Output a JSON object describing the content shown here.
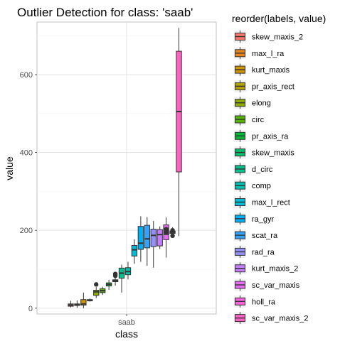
{
  "chart_data": {
    "type": "box",
    "title": "Outlier Detection for class: 'saab'",
    "xlabel": "class",
    "ylabel": "value",
    "categories": [
      "saab"
    ],
    "ylim": [
      -15,
      735
    ],
    "yticks": [
      0,
      200,
      400,
      600
    ],
    "grid": true,
    "legend": {
      "title": "reorder(labels, value)",
      "position": "right"
    },
    "series": [
      {
        "name": "skew_maxis_2",
        "color": "#F8766D",
        "min": 2,
        "q1": 5,
        "median": 8,
        "q3": 11,
        "max": 19,
        "outliers": []
      },
      {
        "name": "max_l_ra",
        "color": "#E7851E",
        "min": 1,
        "q1": 7,
        "median": 9,
        "q3": 11,
        "max": 20,
        "outliers": []
      },
      {
        "name": "kurt_maxis",
        "color": "#D09400",
        "min": 0,
        "q1": 8,
        "median": 11,
        "q3": 22,
        "max": 40,
        "outliers": []
      },
      {
        "name": "pr_axis_rect",
        "color": "#B2A100",
        "min": 17,
        "q1": 19,
        "median": 20,
        "q3": 22,
        "max": 25,
        "outliers": []
      },
      {
        "name": "elong",
        "color": "#8BAB00",
        "min": 26,
        "q1": 33,
        "median": 42,
        "q3": 46,
        "max": 54,
        "outliers": [
          61
        ]
      },
      {
        "name": "circ",
        "color": "#55B400",
        "min": 34,
        "q1": 40,
        "median": 45,
        "q3": 50,
        "max": 55,
        "outliers": []
      },
      {
        "name": "pr_axis_ra",
        "color": "#00BA38",
        "min": 47,
        "q1": 57,
        "median": 61,
        "q3": 65,
        "max": 73,
        "outliers": []
      },
      {
        "name": "skew_maxis",
        "color": "#00BE6C",
        "min": 58,
        "q1": 68,
        "median": 71,
        "q3": 73,
        "max": 80,
        "outliers": [
          83,
          86,
          88
        ]
      },
      {
        "name": "d_circ",
        "color": "#00C08E",
        "min": 40,
        "q1": 77,
        "median": 90,
        "q3": 103,
        "max": 112,
        "outliers": []
      },
      {
        "name": "comp",
        "color": "#00C0AF",
        "min": 74,
        "q1": 86,
        "median": 94,
        "q3": 104,
        "max": 119,
        "outliers": []
      },
      {
        "name": "max_l_rect",
        "color": "#00BCD6",
        "min": 114,
        "q1": 134,
        "median": 150,
        "q3": 161,
        "max": 177,
        "outliers": []
      },
      {
        "name": "ra_gyr",
        "color": "#00B0F6",
        "min": 119,
        "q1": 151,
        "median": 167,
        "q3": 210,
        "max": 236,
        "outliers": []
      },
      {
        "name": "scat_ra",
        "color": "#35A2FF",
        "min": 109,
        "q1": 155,
        "median": 178,
        "q3": 213,
        "max": 234,
        "outliers": []
      },
      {
        "name": "rad_ra",
        "color": "#9590FF",
        "min": 104,
        "q1": 158,
        "median": 187,
        "q3": 203,
        "max": 224,
        "outliers": []
      },
      {
        "name": "kurt_maxis_2",
        "color": "#C77CFF",
        "min": 152,
        "q1": 160,
        "median": 189,
        "q3": 202,
        "max": 210,
        "outliers": []
      },
      {
        "name": "sc_var_maxis",
        "color": "#E76BF3",
        "min": 130,
        "q1": 176,
        "median": 190,
        "q3": 214,
        "max": 233,
        "outliers": [
          195,
          200,
          203
        ]
      },
      {
        "name": "holl_ra",
        "color": "#FA62DB",
        "min": 181,
        "q1": 192,
        "median": 195,
        "q3": 198,
        "max": 208,
        "outliers": [
          186,
          200
        ]
      },
      {
        "name": "sc_var_maxis_2",
        "color": "#FF61C3",
        "min": 185,
        "q1": 350,
        "median": 505,
        "q3": 660,
        "max": 720,
        "outliers": []
      }
    ]
  }
}
